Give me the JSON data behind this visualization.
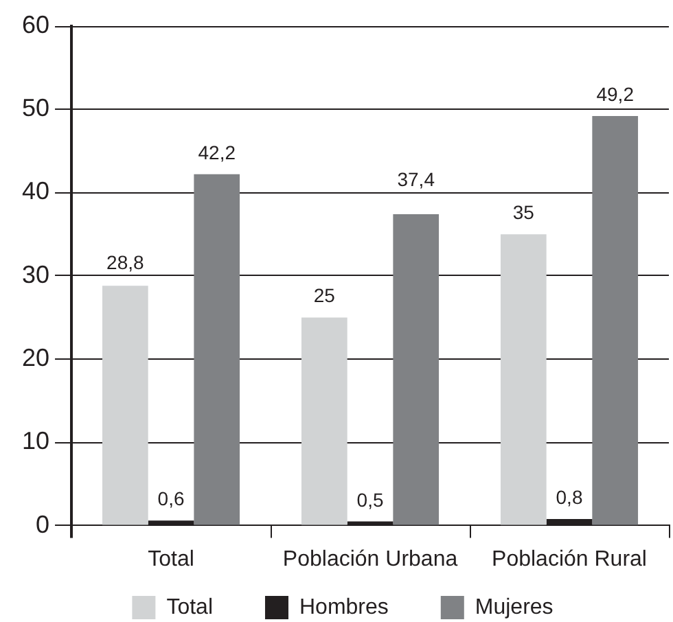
{
  "chart_data": {
    "type": "bar",
    "categories": [
      "Total",
      "Población Urbana",
      "Población Rural"
    ],
    "series": [
      {
        "name": "Total",
        "color": "#d1d3d4",
        "values": [
          28.8,
          25,
          35
        ],
        "value_labels": [
          "28,8",
          "25",
          "35"
        ]
      },
      {
        "name": "Hombres",
        "color": "#231f20",
        "values": [
          0.6,
          0.5,
          0.8
        ],
        "value_labels": [
          "0,6",
          "0,5",
          "0,8"
        ]
      },
      {
        "name": "Mujeres",
        "color": "#808285",
        "values": [
          42.2,
          37.4,
          49.2
        ],
        "value_labels": [
          "42,2",
          "37,4",
          "49,2"
        ]
      }
    ],
    "ylim": [
      0,
      60
    ],
    "yticks": [
      0,
      10,
      20,
      30,
      40,
      50,
      60
    ],
    "grid": "y",
    "legend": "bottom"
  }
}
